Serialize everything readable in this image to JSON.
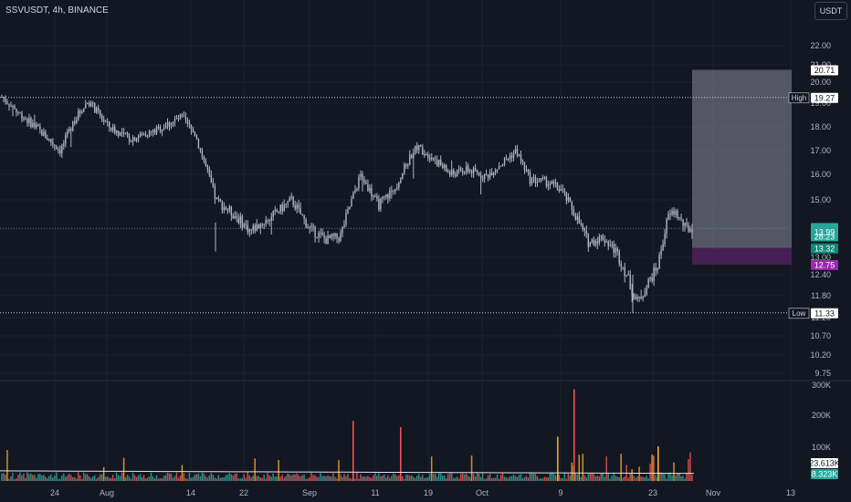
{
  "header": {
    "symbol_line": "SSVUSDT, 4h, BINANCE",
    "currency_button": "USDT"
  },
  "colors": {
    "background": "#131722",
    "candles": "#b2b5be",
    "grid": "#1e2230",
    "volume_up": "#26a69a",
    "volume_down": "#ef5350",
    "volume_highlight": "#f5a623",
    "target_zone": "#6b6e78",
    "stop_zone": "#4a1f5a",
    "current_price_tag": "#26a69a",
    "entry_tag": "#0e8a7a",
    "stop_tag": "#9c27b0",
    "volume_ma": "#e0e3eb"
  },
  "chart_data": {
    "type": "candlestick",
    "timeframe": "4h",
    "x_ticks": [
      "24",
      "Aug",
      "14",
      "22",
      "Sep",
      "11",
      "19",
      "Oct",
      "9",
      "23",
      "Nov",
      "13"
    ],
    "y_ticks": [
      "22.00",
      "21.00",
      "20.00",
      "19.00",
      "18.00",
      "17.00",
      "16.00",
      "15.00",
      "14.00",
      "13.00",
      "12.40",
      "11.80",
      "11.20",
      "10.70",
      "10.20",
      "9.75"
    ],
    "volume_ticks": [
      "300K",
      "200K",
      "100K"
    ],
    "price_anchors": [
      {
        "t": 0,
        "p": 19.3
      },
      {
        "t": 0.02,
        "p": 18.7
      },
      {
        "t": 0.045,
        "p": 18.1
      },
      {
        "t": 0.085,
        "p": 17.0
      },
      {
        "t": 0.105,
        "p": 18.3
      },
      {
        "t": 0.125,
        "p": 19.1
      },
      {
        "t": 0.155,
        "p": 18.0
      },
      {
        "t": 0.185,
        "p": 17.5
      },
      {
        "t": 0.22,
        "p": 17.8
      },
      {
        "t": 0.26,
        "p": 18.4
      },
      {
        "t": 0.28,
        "p": 17.7
      },
      {
        "t": 0.31,
        "p": 15.0
      },
      {
        "t": 0.34,
        "p": 14.4
      },
      {
        "t": 0.36,
        "p": 13.9
      },
      {
        "t": 0.39,
        "p": 14.4
      },
      {
        "t": 0.42,
        "p": 15.0
      },
      {
        "t": 0.445,
        "p": 14.0
      },
      {
        "t": 0.47,
        "p": 13.6
      },
      {
        "t": 0.49,
        "p": 13.7
      },
      {
        "t": 0.52,
        "p": 16.0
      },
      {
        "t": 0.545,
        "p": 14.8
      },
      {
        "t": 0.57,
        "p": 15.5
      },
      {
        "t": 0.6,
        "p": 17.2
      },
      {
        "t": 0.625,
        "p": 16.7
      },
      {
        "t": 0.65,
        "p": 16.0
      },
      {
        "t": 0.675,
        "p": 16.2
      },
      {
        "t": 0.7,
        "p": 15.9
      },
      {
        "t": 0.73,
        "p": 16.6
      },
      {
        "t": 0.745,
        "p": 17.0
      },
      {
        "t": 0.765,
        "p": 15.8
      },
      {
        "t": 0.79,
        "p": 15.7
      },
      {
        "t": 0.81,
        "p": 15.4
      },
      {
        "t": 0.83,
        "p": 14.5
      },
      {
        "t": 0.85,
        "p": 13.5
      },
      {
        "t": 0.87,
        "p": 13.7
      },
      {
        "t": 0.89,
        "p": 13.2
      },
      {
        "t": 0.92,
        "p": 11.6
      },
      {
        "t": 0.935,
        "p": 12.1
      },
      {
        "t": 0.95,
        "p": 12.7
      },
      {
        "t": 0.965,
        "p": 14.4
      },
      {
        "t": 0.975,
        "p": 14.6
      },
      {
        "t": 0.99,
        "p": 14.0
      },
      {
        "t": 1.0,
        "p": 13.99
      }
    ],
    "high": "19.27",
    "low": "11.33",
    "position": {
      "target": "20.71",
      "entry": "13.32",
      "stop": "12.75"
    },
    "last_price": "13.99",
    "countdown": "28:23",
    "volume_ma_value": "23.613K",
    "volume_value": "8.323K"
  }
}
